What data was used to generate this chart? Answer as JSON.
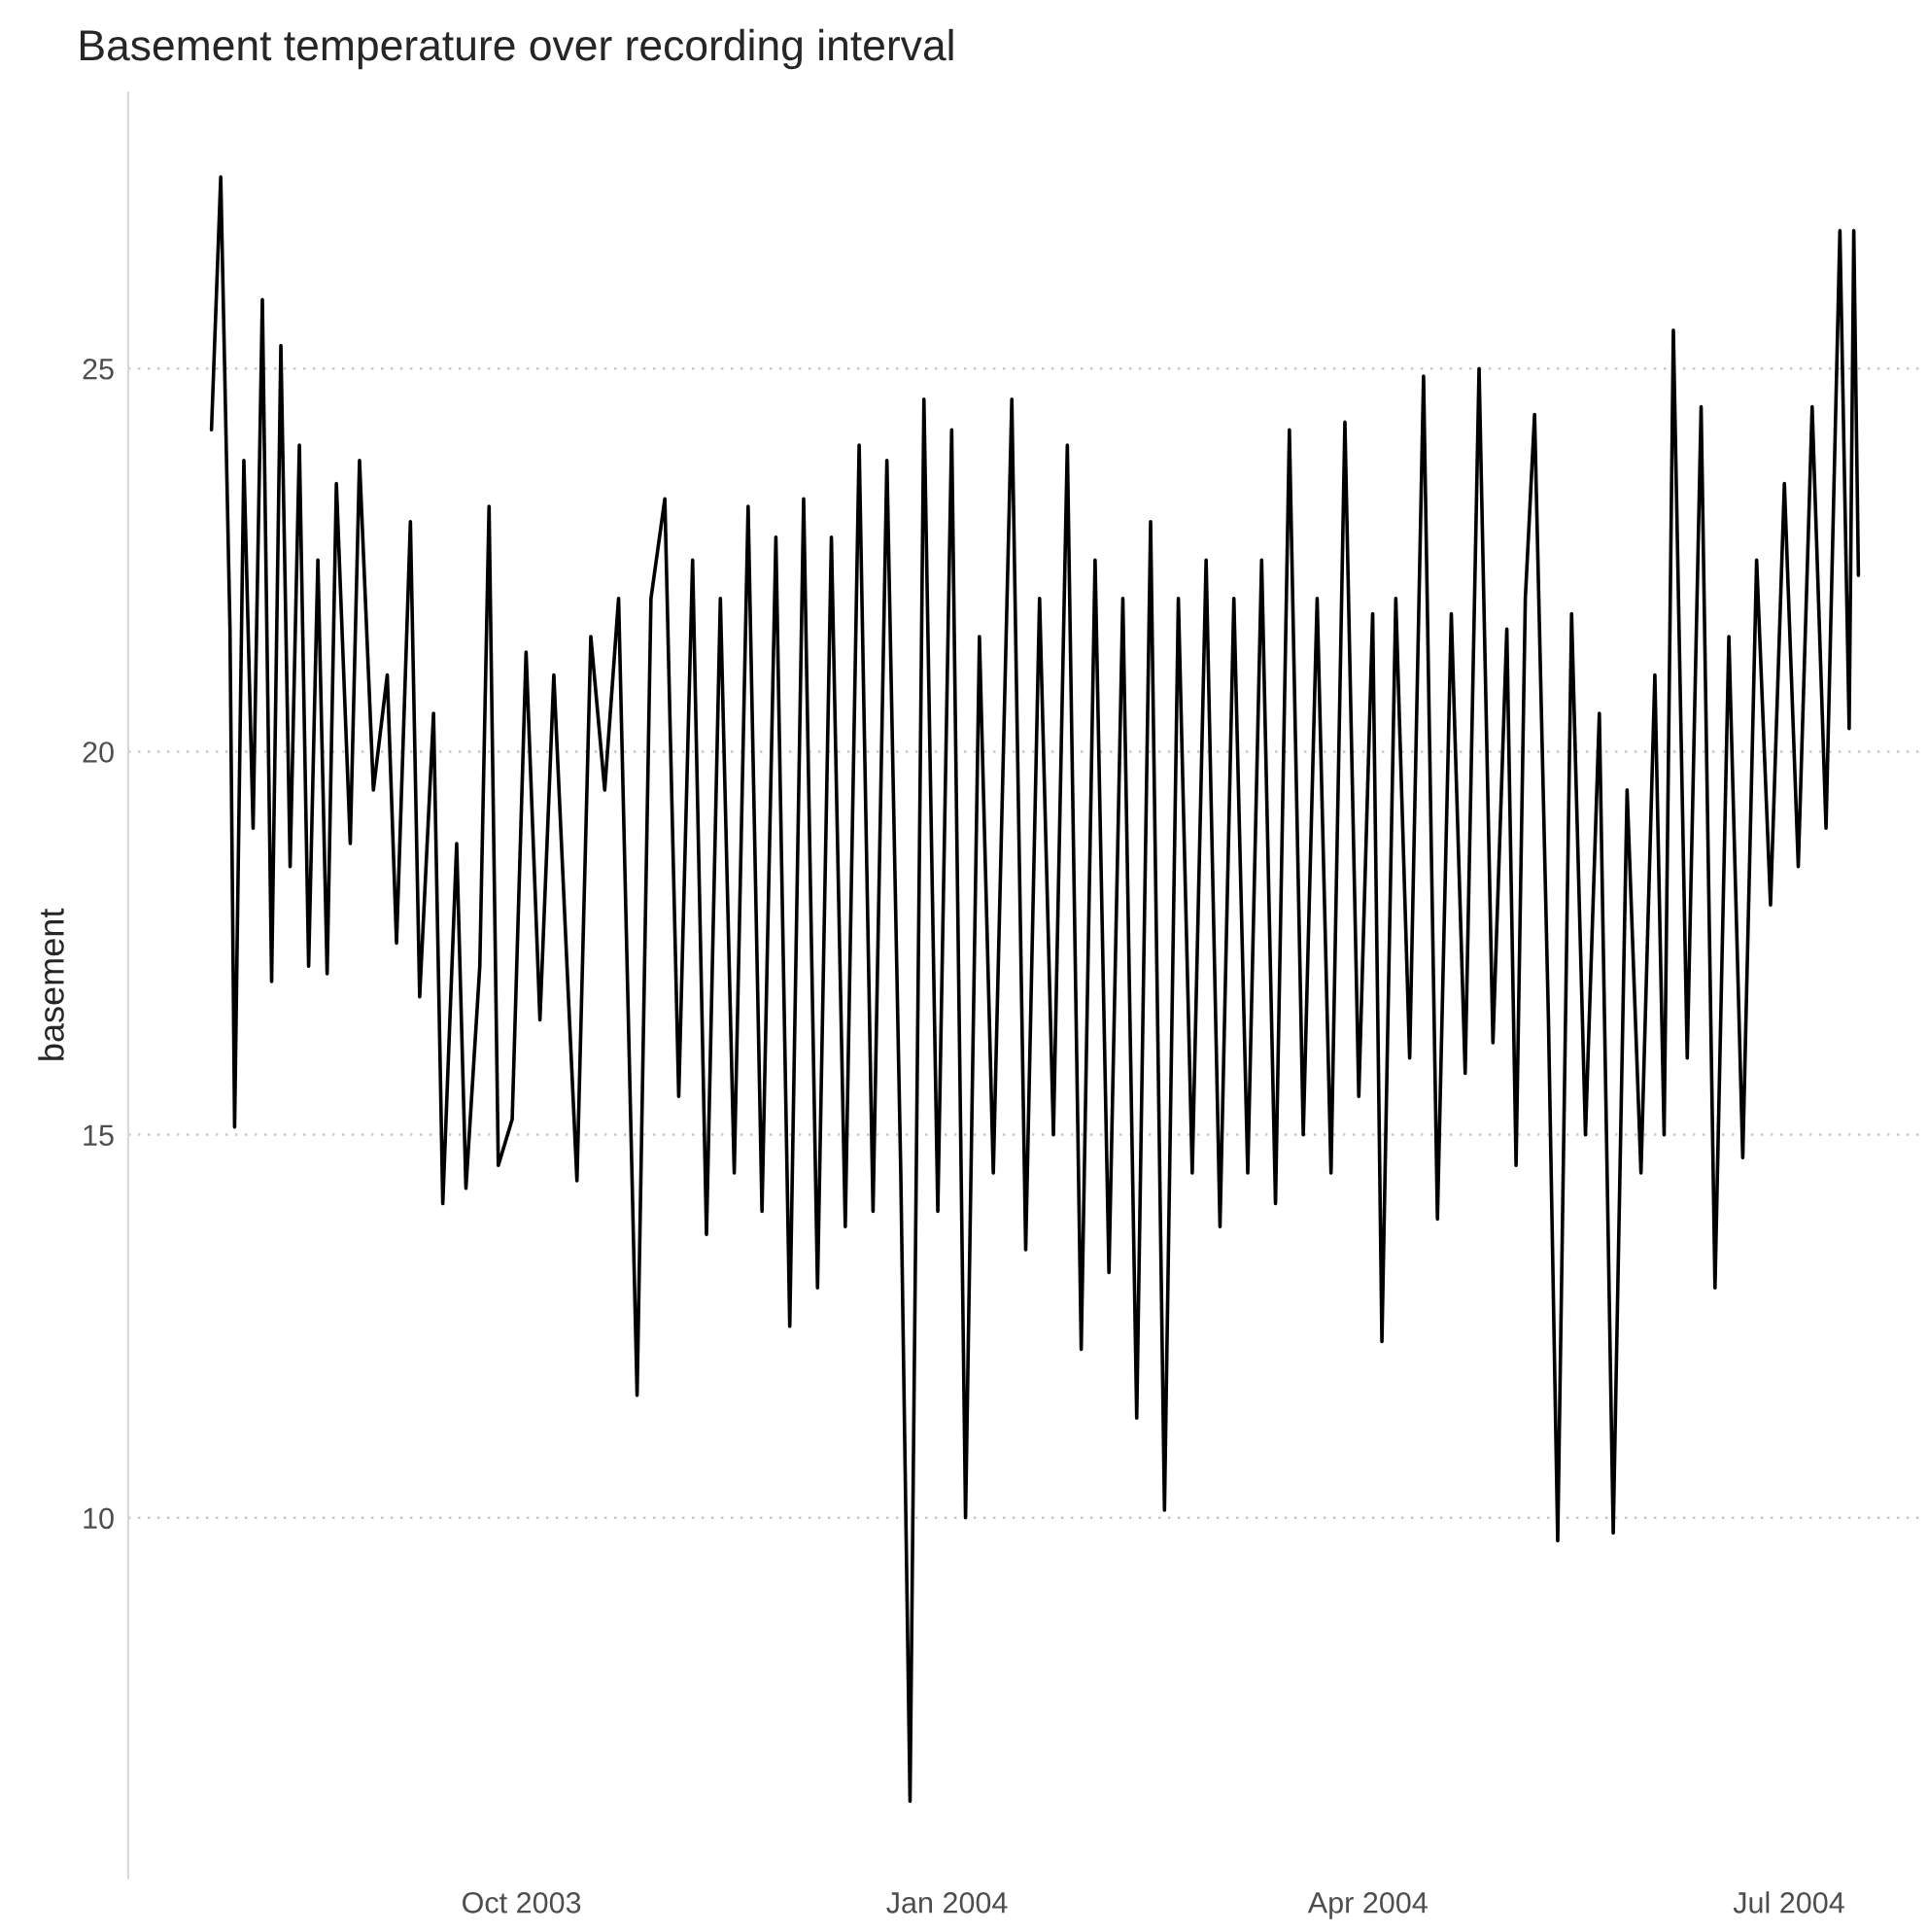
{
  "chart_data": {
    "type": "line",
    "title": "Basement temperature over recording interval",
    "ylabel": "basement",
    "x": [
      "2003-07-26",
      "2003-07-28",
      "2003-07-30",
      "2003-07-31",
      "2003-08-02",
      "2003-08-04",
      "2003-08-06",
      "2003-08-08",
      "2003-08-10",
      "2003-08-12",
      "2003-08-14",
      "2003-08-16",
      "2003-08-18",
      "2003-08-20",
      "2003-08-22",
      "2003-08-25",
      "2003-08-27",
      "2003-08-30",
      "2003-09-02",
      "2003-09-04",
      "2003-09-07",
      "2003-09-09",
      "2003-09-12",
      "2003-09-14",
      "2003-09-17",
      "2003-09-19",
      "2003-09-22",
      "2003-09-24",
      "2003-09-26",
      "2003-09-29",
      "2003-10-02",
      "2003-10-05",
      "2003-10-08",
      "2003-10-11",
      "2003-10-13",
      "2003-10-16",
      "2003-10-19",
      "2003-10-22",
      "2003-10-26",
      "2003-10-29",
      "2003-11-01",
      "2003-11-04",
      "2003-11-07",
      "2003-11-10",
      "2003-11-13",
      "2003-11-16",
      "2003-11-19",
      "2003-11-22",
      "2003-11-25",
      "2003-11-28",
      "2003-12-01",
      "2003-12-04",
      "2003-12-07",
      "2003-12-10",
      "2003-12-13",
      "2003-12-16",
      "2003-12-19",
      "2003-12-22",
      "2003-12-24",
      "2003-12-27",
      "2003-12-30",
      "2004-01-02",
      "2004-01-05",
      "2004-01-08",
      "2004-01-11",
      "2004-01-15",
      "2004-01-18",
      "2004-01-21",
      "2004-01-24",
      "2004-01-27",
      "2004-01-30",
      "2004-02-02",
      "2004-02-05",
      "2004-02-08",
      "2004-02-11",
      "2004-02-14",
      "2004-02-17",
      "2004-02-20",
      "2004-02-23",
      "2004-02-26",
      "2004-02-29",
      "2004-03-03",
      "2004-03-06",
      "2004-03-09",
      "2004-03-12",
      "2004-03-15",
      "2004-03-18",
      "2004-03-21",
      "2004-03-24",
      "2004-03-27",
      "2004-03-30",
      "2004-04-02",
      "2004-04-04",
      "2004-04-07",
      "2004-04-10",
      "2004-04-13",
      "2004-04-16",
      "2004-04-19",
      "2004-04-22",
      "2004-04-25",
      "2004-04-28",
      "2004-05-01",
      "2004-05-03",
      "2004-05-05",
      "2004-05-07",
      "2004-05-10",
      "2004-05-12",
      "2004-05-15",
      "2004-05-18",
      "2004-05-21",
      "2004-05-24",
      "2004-05-27",
      "2004-05-30",
      "2004-06-02",
      "2004-06-04",
      "2004-06-06",
      "2004-06-09",
      "2004-06-12",
      "2004-06-15",
      "2004-06-18",
      "2004-06-21",
      "2004-06-24",
      "2004-06-27",
      "2004-06-30",
      "2004-07-03",
      "2004-07-06",
      "2004-07-09",
      "2004-07-12",
      "2004-07-14",
      "2004-07-15",
      "2004-07-16"
    ],
    "series": [
      {
        "color": "#000000",
        "values": [
          24.2,
          27.5,
          21.6,
          15.1,
          23.8,
          19.0,
          25.9,
          17.0,
          25.3,
          18.5,
          24.0,
          17.2,
          22.5,
          17.1,
          23.5,
          18.8,
          23.8,
          19.5,
          21.0,
          17.5,
          23.0,
          16.8,
          20.5,
          14.1,
          18.8,
          14.3,
          17.2,
          23.2,
          14.6,
          15.2,
          21.3,
          16.5,
          21.0,
          17.0,
          14.4,
          21.5,
          19.5,
          22.0,
          11.6,
          22.0,
          23.3,
          15.5,
          22.5,
          13.7,
          22.0,
          14.5,
          23.2,
          14.0,
          22.8,
          12.5,
          23.3,
          13.0,
          22.8,
          13.8,
          24.0,
          14.0,
          23.8,
          14.5,
          6.3,
          24.6,
          14.0,
          24.2,
          10.0,
          21.5,
          14.5,
          24.6,
          13.5,
          22.0,
          15.0,
          24.0,
          12.2,
          22.5,
          13.2,
          22.0,
          11.3,
          23.0,
          10.1,
          22.0,
          14.5,
          22.5,
          13.8,
          22.0,
          14.5,
          22.5,
          14.1,
          24.2,
          15.0,
          22.0,
          14.5,
          24.3,
          15.5,
          21.8,
          12.3,
          22.0,
          16.0,
          24.9,
          13.9,
          21.8,
          15.8,
          25.0,
          16.2,
          21.6,
          14.6,
          22.0,
          24.4,
          16.5,
          9.7,
          21.8,
          15.0,
          20.5,
          9.8,
          19.5,
          14.5,
          21.0,
          15.0,
          25.5,
          16.0,
          24.5,
          13.0,
          21.5,
          14.7,
          22.5,
          18.0,
          23.5,
          18.5,
          24.5,
          19.0,
          26.8,
          20.3,
          26.8,
          22.3
        ]
      }
    ],
    "xlim": [
      "2003-07-08",
      "2004-07-30"
    ],
    "xticks": [
      {
        "value": "2003-10-01",
        "label": "Oct 2003"
      },
      {
        "value": "2004-01-01",
        "label": "Jan 2004"
      },
      {
        "value": "2004-04-01",
        "label": "Apr 2004"
      },
      {
        "value": "2004-07-01",
        "label": "Jul 2004"
      }
    ],
    "ylim": [
      5.3,
      28.6
    ],
    "yticks": [
      10,
      15,
      20,
      25
    ],
    "grid": "y",
    "line_style": "solid",
    "marker": "none",
    "legend": false
  }
}
